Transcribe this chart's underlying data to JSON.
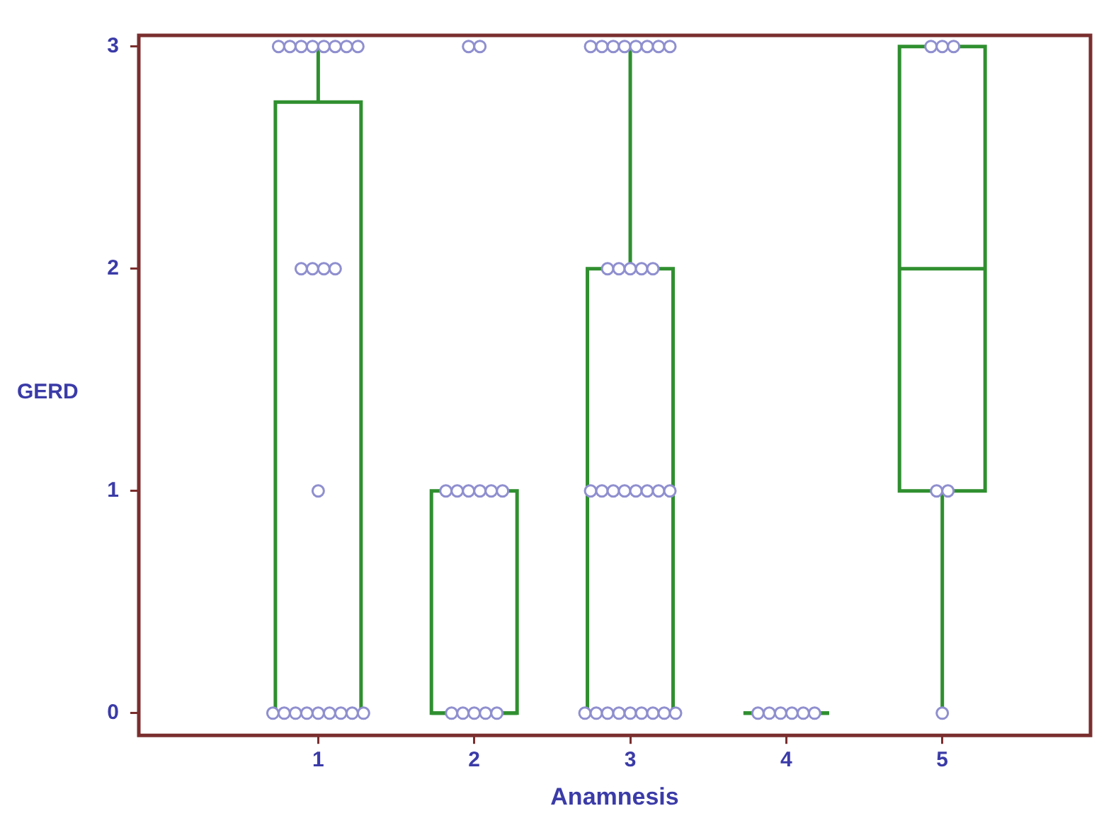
{
  "chart_data": {
    "type": "box",
    "xlabel": "Anamnesis",
    "ylabel": "GERD",
    "categories": [
      "1",
      "2",
      "3",
      "4",
      "5"
    ],
    "color": "#2f8f2f",
    "ylim": [
      -0.1,
      3.05
    ],
    "yticks": [
      0,
      1,
      2,
      3
    ],
    "grid": false,
    "boxes": [
      {
        "low": 0,
        "q1": 0,
        "median": 0,
        "q3": 2.75,
        "high": 3
      },
      {
        "low": 0,
        "q1": 0,
        "median": 0,
        "q3": 1,
        "high": 1
      },
      {
        "low": 0,
        "q1": 0,
        "median": 1,
        "q3": 2,
        "high": 3
      },
      {
        "low": 0,
        "q1": 0,
        "median": 0,
        "q3": 0,
        "high": 0
      },
      {
        "low": 0,
        "q1": 1,
        "median": 2,
        "q3": 3,
        "high": 3
      }
    ],
    "series": [
      {
        "type": "scatter",
        "color": "#8f8fcf",
        "marker": "circle",
        "x": [
          "1",
          "1",
          "1",
          "1",
          "1",
          "1",
          "1",
          "1",
          "1",
          "1",
          "1",
          "1",
          "1",
          "1",
          "1",
          "1",
          "1",
          "1",
          "1",
          "1",
          "1",
          "1",
          "2",
          "2",
          "2",
          "2",
          "2",
          "2",
          "2",
          "2",
          "2",
          "2",
          "2",
          "2",
          "2",
          "3",
          "3",
          "3",
          "3",
          "3",
          "3",
          "3",
          "3",
          "3",
          "3",
          "3",
          "3",
          "3",
          "3",
          "3",
          "3",
          "3",
          "3",
          "3",
          "3",
          "3",
          "3",
          "3",
          "3",
          "3",
          "3",
          "3",
          "3",
          "3",
          "3",
          "4",
          "4",
          "4",
          "4",
          "4",
          "4",
          "5",
          "5",
          "5",
          "5",
          "5",
          "5"
        ],
        "values": [
          3,
          3,
          3,
          3,
          3,
          3,
          3,
          3,
          2,
          2,
          2,
          2,
          1,
          0,
          0,
          0,
          0,
          0,
          0,
          0,
          0,
          0,
          3,
          3,
          1,
          1,
          1,
          1,
          1,
          1,
          0,
          0,
          0,
          0,
          0,
          3,
          3,
          3,
          3,
          3,
          3,
          3,
          3,
          2,
          2,
          2,
          2,
          2,
          1,
          1,
          1,
          1,
          1,
          1,
          1,
          1,
          0,
          0,
          0,
          0,
          0,
          0,
          0,
          0,
          0,
          0,
          0,
          0,
          0,
          0,
          0,
          3,
          3,
          3,
          1,
          1,
          0
        ]
      }
    ]
  }
}
